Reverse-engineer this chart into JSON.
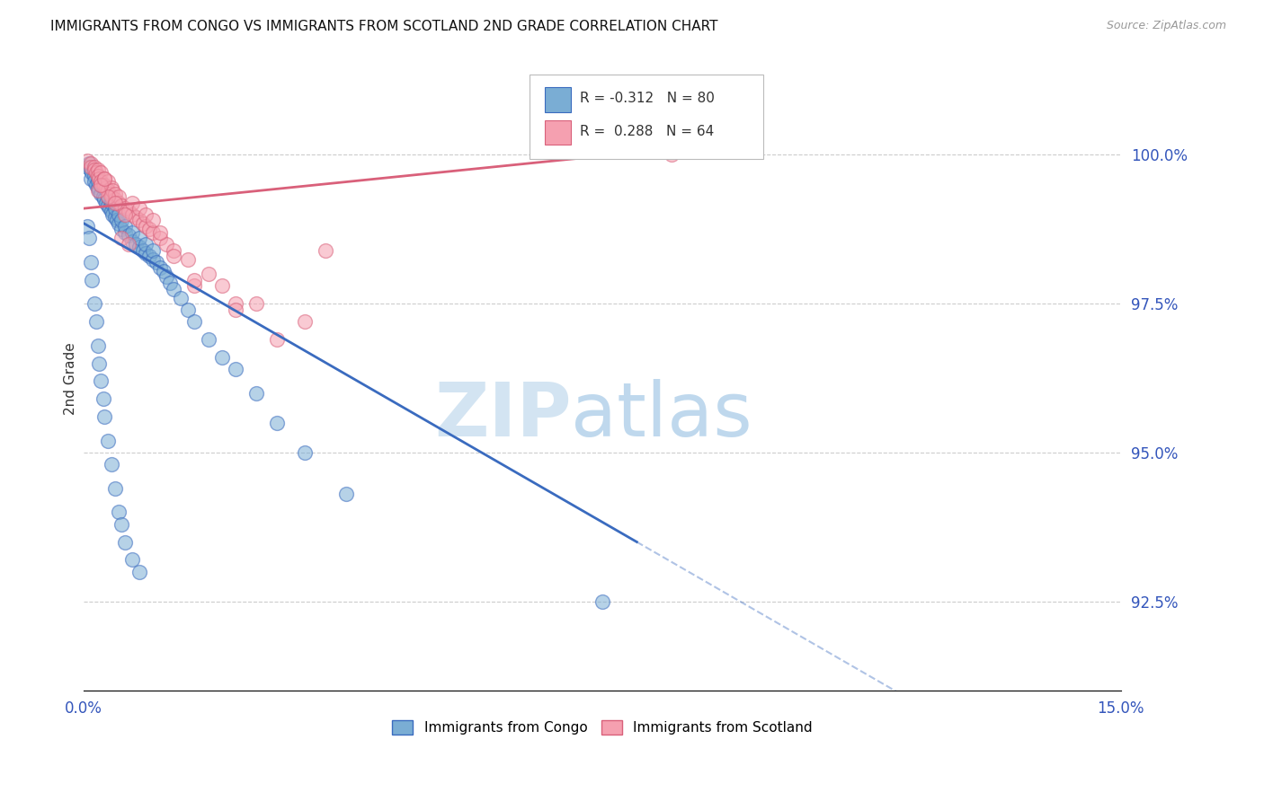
{
  "title": "IMMIGRANTS FROM CONGO VS IMMIGRANTS FROM SCOTLAND 2ND GRADE CORRELATION CHART",
  "source": "Source: ZipAtlas.com",
  "ylabel": "2nd Grade",
  "x_range": [
    0.0,
    15.0
  ],
  "y_range": [
    91.0,
    101.5
  ],
  "y_ticks": [
    92.5,
    95.0,
    97.5,
    100.0
  ],
  "y_tick_labels": [
    "92.5%",
    "95.0%",
    "97.5%",
    "100.0%"
  ],
  "legend_blue_r": "-0.312",
  "legend_blue_n": "80",
  "legend_pink_r": "0.288",
  "legend_pink_n": "64",
  "blue_color": "#7aadd4",
  "pink_color": "#f5a0b0",
  "blue_line_color": "#3a6bbf",
  "pink_line_color": "#d9607a",
  "blue_line_x0": 0.0,
  "blue_line_y0": 98.85,
  "blue_line_x1": 8.0,
  "blue_line_y1": 93.5,
  "pink_line_x0": 0.0,
  "pink_line_y0": 99.1,
  "pink_line_x1": 8.5,
  "pink_line_y1": 100.1,
  "blue_dashed_x0": 8.0,
  "blue_dashed_x1": 15.0,
  "congo_x": [
    0.05,
    0.08,
    0.1,
    0.1,
    0.12,
    0.15,
    0.15,
    0.18,
    0.2,
    0.2,
    0.22,
    0.25,
    0.25,
    0.28,
    0.3,
    0.3,
    0.32,
    0.35,
    0.35,
    0.38,
    0.4,
    0.4,
    0.42,
    0.45,
    0.45,
    0.48,
    0.5,
    0.5,
    0.55,
    0.55,
    0.6,
    0.6,
    0.65,
    0.7,
    0.7,
    0.75,
    0.8,
    0.8,
    0.85,
    0.9,
    0.9,
    0.95,
    1.0,
    1.0,
    1.05,
    1.1,
    1.15,
    1.2,
    1.25,
    1.3,
    1.4,
    1.5,
    1.6,
    1.8,
    2.0,
    2.2,
    2.5,
    2.8,
    3.2,
    3.8,
    0.05,
    0.08,
    0.1,
    0.12,
    0.15,
    0.18,
    0.2,
    0.22,
    0.25,
    0.28,
    0.3,
    0.35,
    0.4,
    0.45,
    0.5,
    0.55,
    0.6,
    0.7,
    0.8,
    7.5
  ],
  "congo_y": [
    99.8,
    99.85,
    99.75,
    99.6,
    99.7,
    99.65,
    99.55,
    99.5,
    99.45,
    99.55,
    99.4,
    99.35,
    99.5,
    99.3,
    99.25,
    99.45,
    99.2,
    99.15,
    99.3,
    99.1,
    99.05,
    99.2,
    99.0,
    98.95,
    99.1,
    98.9,
    98.85,
    99.0,
    98.75,
    98.9,
    98.7,
    98.8,
    98.65,
    98.55,
    98.7,
    98.5,
    98.45,
    98.6,
    98.4,
    98.35,
    98.5,
    98.3,
    98.25,
    98.4,
    98.2,
    98.1,
    98.05,
    97.95,
    97.85,
    97.75,
    97.6,
    97.4,
    97.2,
    96.9,
    96.6,
    96.4,
    96.0,
    95.5,
    95.0,
    94.3,
    98.8,
    98.6,
    98.2,
    97.9,
    97.5,
    97.2,
    96.8,
    96.5,
    96.2,
    95.9,
    95.6,
    95.2,
    94.8,
    94.4,
    94.0,
    93.8,
    93.5,
    93.2,
    93.0,
    92.5
  ],
  "scotland_x": [
    0.05,
    0.1,
    0.1,
    0.15,
    0.15,
    0.18,
    0.2,
    0.2,
    0.22,
    0.25,
    0.25,
    0.28,
    0.3,
    0.3,
    0.32,
    0.35,
    0.35,
    0.38,
    0.4,
    0.4,
    0.42,
    0.45,
    0.45,
    0.5,
    0.5,
    0.55,
    0.6,
    0.65,
    0.7,
    0.75,
    0.8,
    0.85,
    0.9,
    0.95,
    1.0,
    1.1,
    1.2,
    1.3,
    1.5,
    1.8,
    2.0,
    2.5,
    3.2,
    2.2,
    1.6,
    0.55,
    0.65,
    0.7,
    0.8,
    0.9,
    1.0,
    1.1,
    1.3,
    1.6,
    2.2,
    2.8,
    3.5,
    0.35,
    0.45,
    0.6,
    0.2,
    0.25,
    0.3,
    8.5
  ],
  "scotland_y": [
    99.9,
    99.85,
    99.8,
    99.8,
    99.75,
    99.7,
    99.75,
    99.65,
    99.6,
    99.7,
    99.55,
    99.5,
    99.6,
    99.5,
    99.45,
    99.55,
    99.4,
    99.35,
    99.45,
    99.3,
    99.4,
    99.25,
    99.35,
    99.2,
    99.3,
    99.15,
    99.1,
    99.05,
    99.0,
    98.95,
    98.9,
    98.85,
    98.8,
    98.75,
    98.7,
    98.6,
    98.5,
    98.4,
    98.25,
    98.0,
    97.8,
    97.5,
    97.2,
    97.5,
    97.8,
    98.6,
    98.5,
    99.2,
    99.1,
    99.0,
    98.9,
    98.7,
    98.3,
    97.9,
    97.4,
    96.9,
    98.4,
    99.3,
    99.2,
    99.0,
    99.4,
    99.5,
    99.6,
    100.0
  ]
}
